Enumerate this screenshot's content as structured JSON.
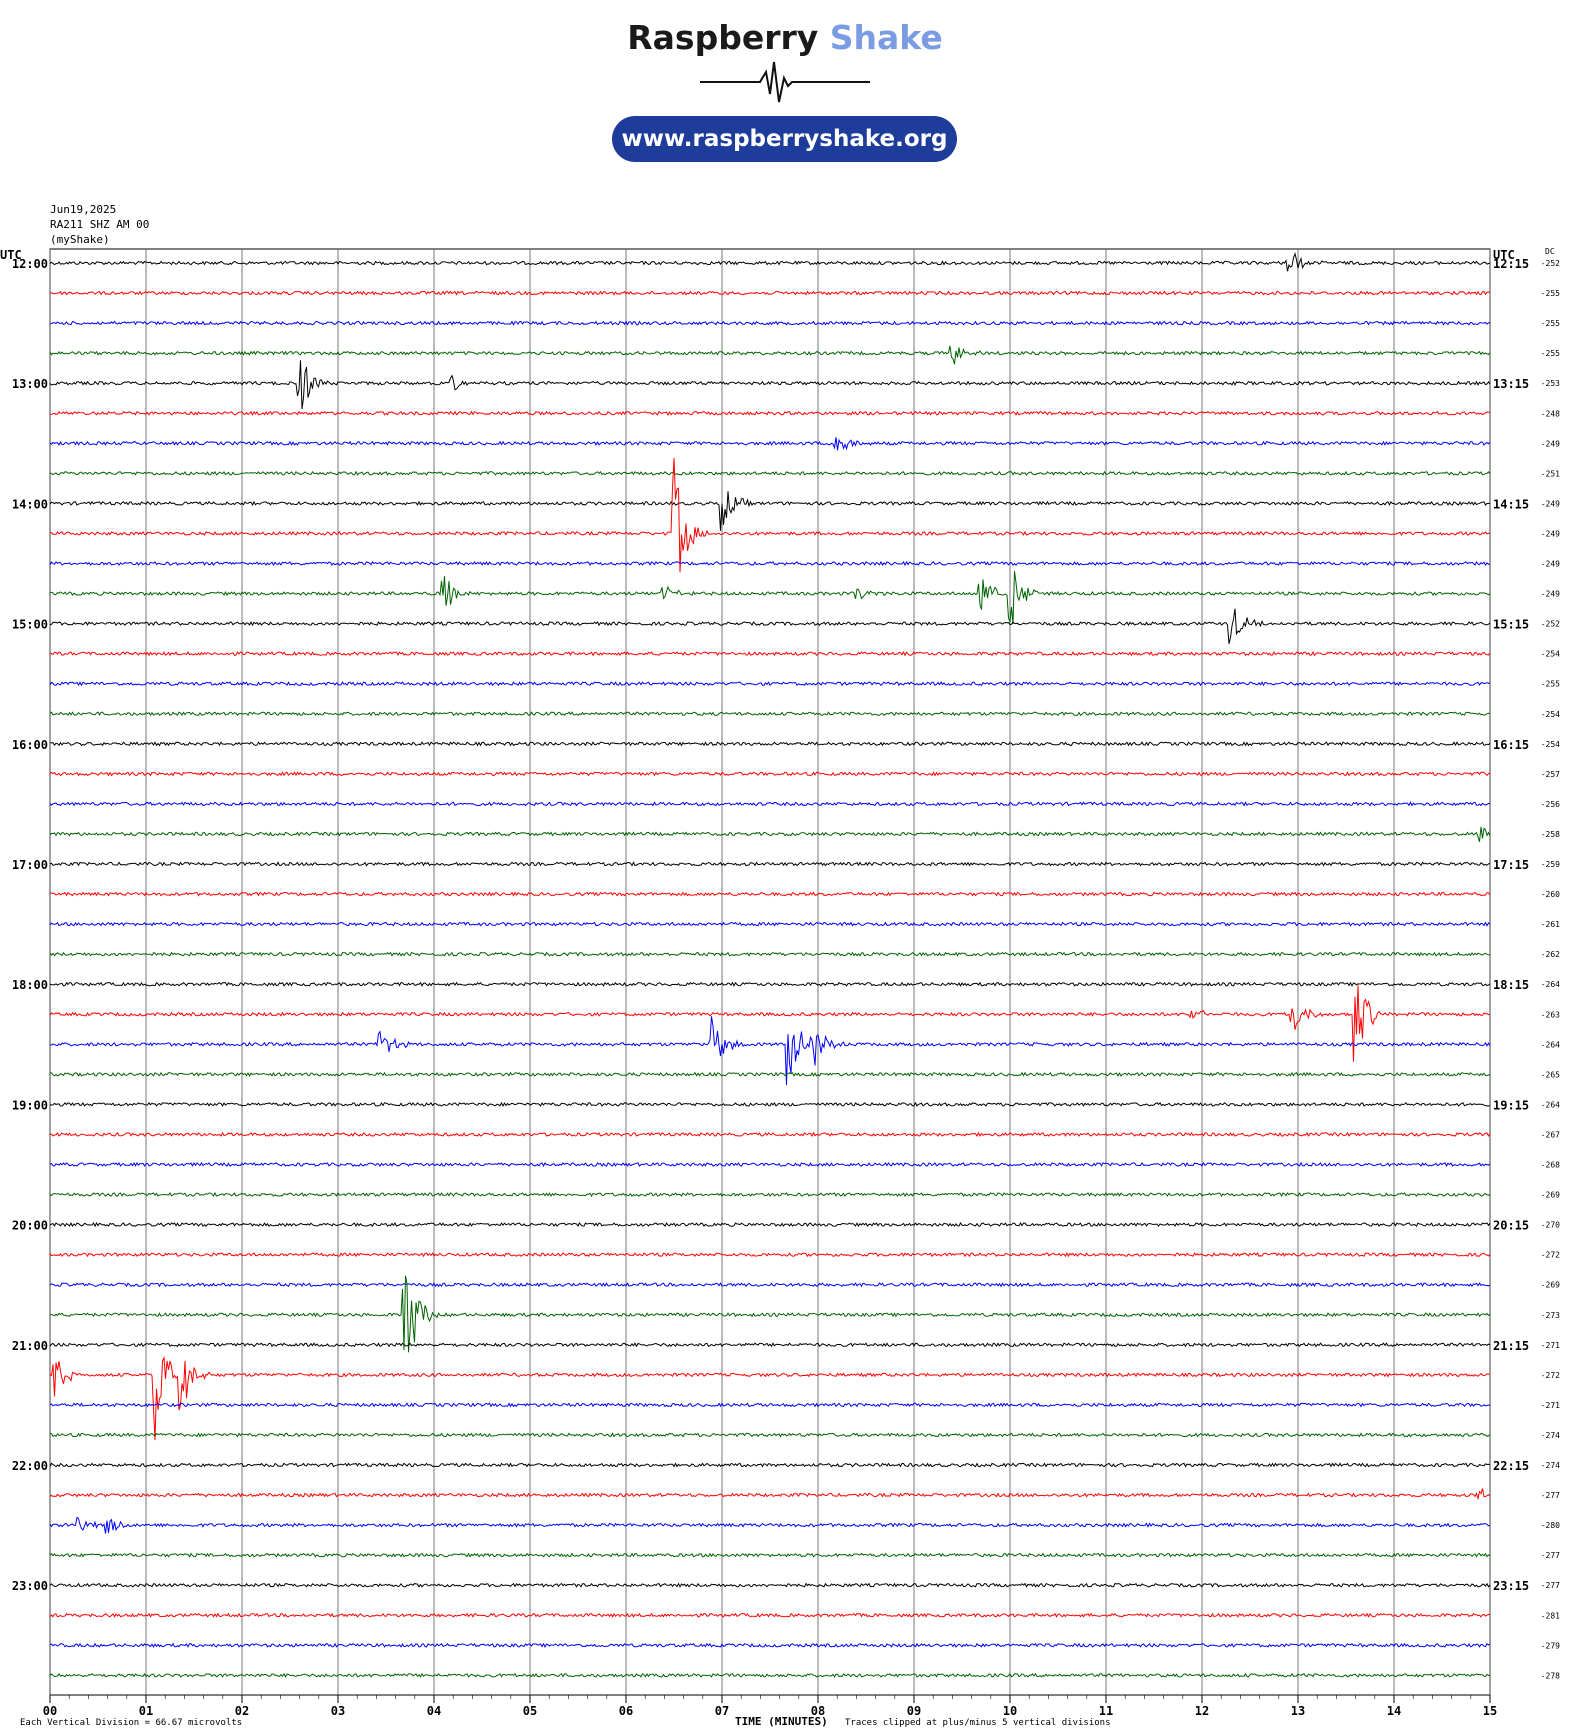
{
  "brand": {
    "name_main": "Raspberry",
    "name_accent": "Shake",
    "url": "www.raspberryshake.org",
    "accent_color": "#7b9be3",
    "pill_color": "#1e3c9a"
  },
  "meta": {
    "date": "Jun19,2025",
    "station": "RA211 SHZ AM 00",
    "source": "(myShake)"
  },
  "left_axis_label": "UTC",
  "right_axis_label": "UTC",
  "dc_label": "DC",
  "footer": {
    "division": "Each Vertical Division =   66.67 microvolts",
    "xlabel": "TIME (MINUTES)",
    "clip": "Traces clipped at plus/minus 5 vertical divisions"
  },
  "chart_data": {
    "type": "helicorder",
    "x_range_minutes": [
      0,
      15
    ],
    "x_ticks": [
      "00",
      "01",
      "02",
      "03",
      "04",
      "05",
      "06",
      "07",
      "08",
      "09",
      "10",
      "11",
      "12",
      "13",
      "14",
      "15"
    ],
    "grid": true,
    "trace_colors": [
      "#000000",
      "#ff0000",
      "#0000ff",
      "#006400"
    ],
    "hour_labels_left": [
      "12:00",
      "13:00",
      "14:00",
      "15:00",
      "16:00",
      "17:00",
      "18:00",
      "19:00",
      "20:00",
      "21:00",
      "22:00",
      "23:00"
    ],
    "hour_labels_right": [
      "12:15",
      "13:15",
      "14:15",
      "15:15",
      "16:15",
      "17:15",
      "18:15",
      "19:15",
      "20:15",
      "21:15",
      "22:15",
      "23:15"
    ],
    "dc_offsets": [
      "-252",
      "-255",
      "-255",
      "-255",
      "-253",
      "-248",
      "-249",
      "-251",
      "-249",
      "-249",
      "-249",
      "-249",
      "-252",
      "-254",
      "-255",
      "-254",
      "-254",
      "-257",
      "-256",
      "-258",
      "-259",
      "-260",
      "-261",
      "-262",
      "-264",
      "-263",
      "-264",
      "-265",
      "-264",
      "-267",
      "-268",
      "-269",
      "-270",
      "-272",
      "-269",
      "-273",
      "-271",
      "-272",
      "-271",
      "-274",
      "-274",
      "-277",
      "-280",
      "-277",
      "-277",
      "-281",
      "-279",
      "-278"
    ],
    "events": [
      {
        "trace": 0,
        "minute": 12.9,
        "amp": 1.2
      },
      {
        "trace": 3,
        "minute": 9.4,
        "amp": 1.0
      },
      {
        "trace": 4,
        "minute": 2.6,
        "amp": 2.5
      },
      {
        "trace": 4,
        "minute": 4.2,
        "amp": 0.6
      },
      {
        "trace": 6,
        "minute": 8.2,
        "amp": 1.0
      },
      {
        "trace": 8,
        "minute": 7.0,
        "amp": 2.0
      },
      {
        "trace": 9,
        "minute": 6.5,
        "amp": 5.0
      },
      {
        "trace": 11,
        "minute": 4.1,
        "amp": 1.5
      },
      {
        "trace": 11,
        "minute": 6.4,
        "amp": 0.6
      },
      {
        "trace": 11,
        "minute": 8.4,
        "amp": 0.6
      },
      {
        "trace": 11,
        "minute": 9.7,
        "amp": 1.5
      },
      {
        "trace": 11,
        "minute": 10.0,
        "amp": 3.0
      },
      {
        "trace": 12,
        "minute": 12.3,
        "amp": 1.7
      },
      {
        "trace": 19,
        "minute": 14.9,
        "amp": 0.7
      },
      {
        "trace": 25,
        "minute": 11.9,
        "amp": 0.6
      },
      {
        "trace": 25,
        "minute": 12.95,
        "amp": 1.5
      },
      {
        "trace": 25,
        "minute": 13.6,
        "amp": 3.5
      },
      {
        "trace": 26,
        "minute": 3.45,
        "amp": 1.3
      },
      {
        "trace": 26,
        "minute": 6.9,
        "amp": 2.0
      },
      {
        "trace": 26,
        "minute": 7.7,
        "amp": 2.8
      },
      {
        "trace": 26,
        "minute": 7.95,
        "amp": 1.8
      },
      {
        "trace": 35,
        "minute": 3.7,
        "amp": 5.0
      },
      {
        "trace": 37,
        "minute": 0.05,
        "amp": 1.5
      },
      {
        "trace": 37,
        "minute": 1.1,
        "amp": 5.0
      },
      {
        "trace": 37,
        "minute": 1.35,
        "amp": 3.5
      },
      {
        "trace": 41,
        "minute": 14.9,
        "amp": 0.6
      },
      {
        "trace": 42,
        "minute": 0.3,
        "amp": 0.6
      },
      {
        "trace": 42,
        "minute": 0.6,
        "amp": 0.8
      }
    ]
  }
}
